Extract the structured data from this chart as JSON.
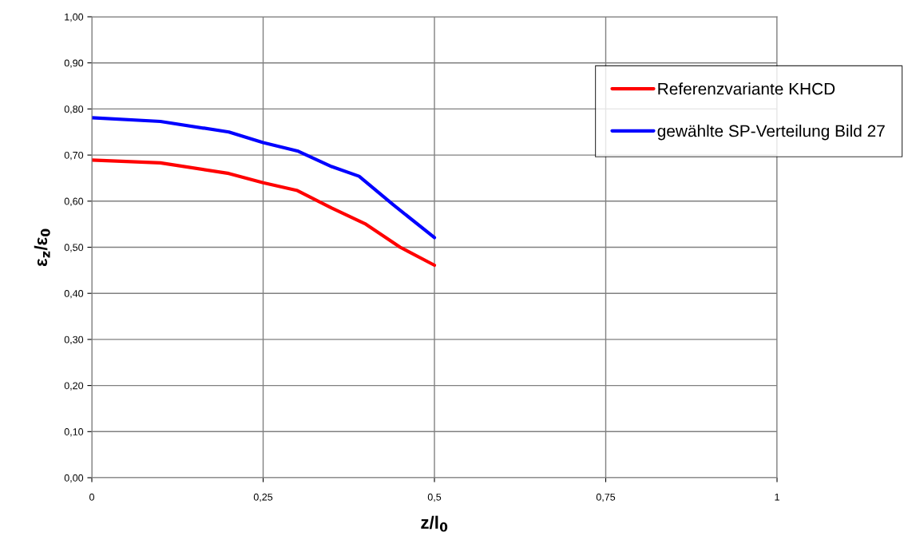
{
  "chart_data": {
    "type": "line",
    "xlabel": "z/l$_{0}$",
    "ylabel": "ε$_{z}$/ε$_{0}$",
    "xlim": [
      0,
      1
    ],
    "xticks": [
      0,
      {
        "value": 0.25,
        "label": "0,25"
      },
      {
        "value": 0.5,
        "label": "0,5"
      },
      {
        "value": 0.75,
        "label": "0,75"
      },
      1
    ],
    "ylim": [
      0,
      1
    ],
    "yticks": [
      {
        "value": 0,
        "label": "0,00"
      },
      {
        "value": 0.1,
        "label": "0,10"
      },
      {
        "value": 0.2,
        "label": "0,20"
      },
      {
        "value": 0.3,
        "label": "0,30"
      },
      {
        "value": 0.4,
        "label": "0,40"
      },
      {
        "value": 0.5,
        "label": "0,50"
      },
      {
        "value": 0.6,
        "label": "0,60"
      },
      {
        "value": 0.7,
        "label": "0,70"
      },
      {
        "value": 0.8,
        "label": "0,80"
      },
      {
        "value": 0.9,
        "label": "0,90"
      },
      {
        "value": 1,
        "label": "1,00"
      }
    ],
    "grid": true,
    "legend": "top right",
    "marker": "none",
    "line_style": "solid",
    "series": [
      {
        "name": "Referenzvariante KHCD",
        "color": "#ff0000",
        "x": [
          0,
          0.1,
          0.2,
          0.25,
          0.3,
          0.35,
          0.4,
          0.45,
          0.5
        ],
        "values": [
          0.689,
          0.683,
          0.66,
          0.64,
          0.623,
          0.585,
          0.55,
          0.5,
          0.461
        ]
      },
      {
        "name": "gewählte SP-Verteilung Bild 27",
        "color": "#0000ff",
        "x": [
          0,
          0.1,
          0.2,
          0.25,
          0.3,
          0.35,
          0.39,
          0.44,
          0.5
        ],
        "values": [
          0.781,
          0.773,
          0.75,
          0.727,
          0.709,
          0.675,
          0.654,
          0.592,
          0.521
        ]
      }
    ]
  }
}
